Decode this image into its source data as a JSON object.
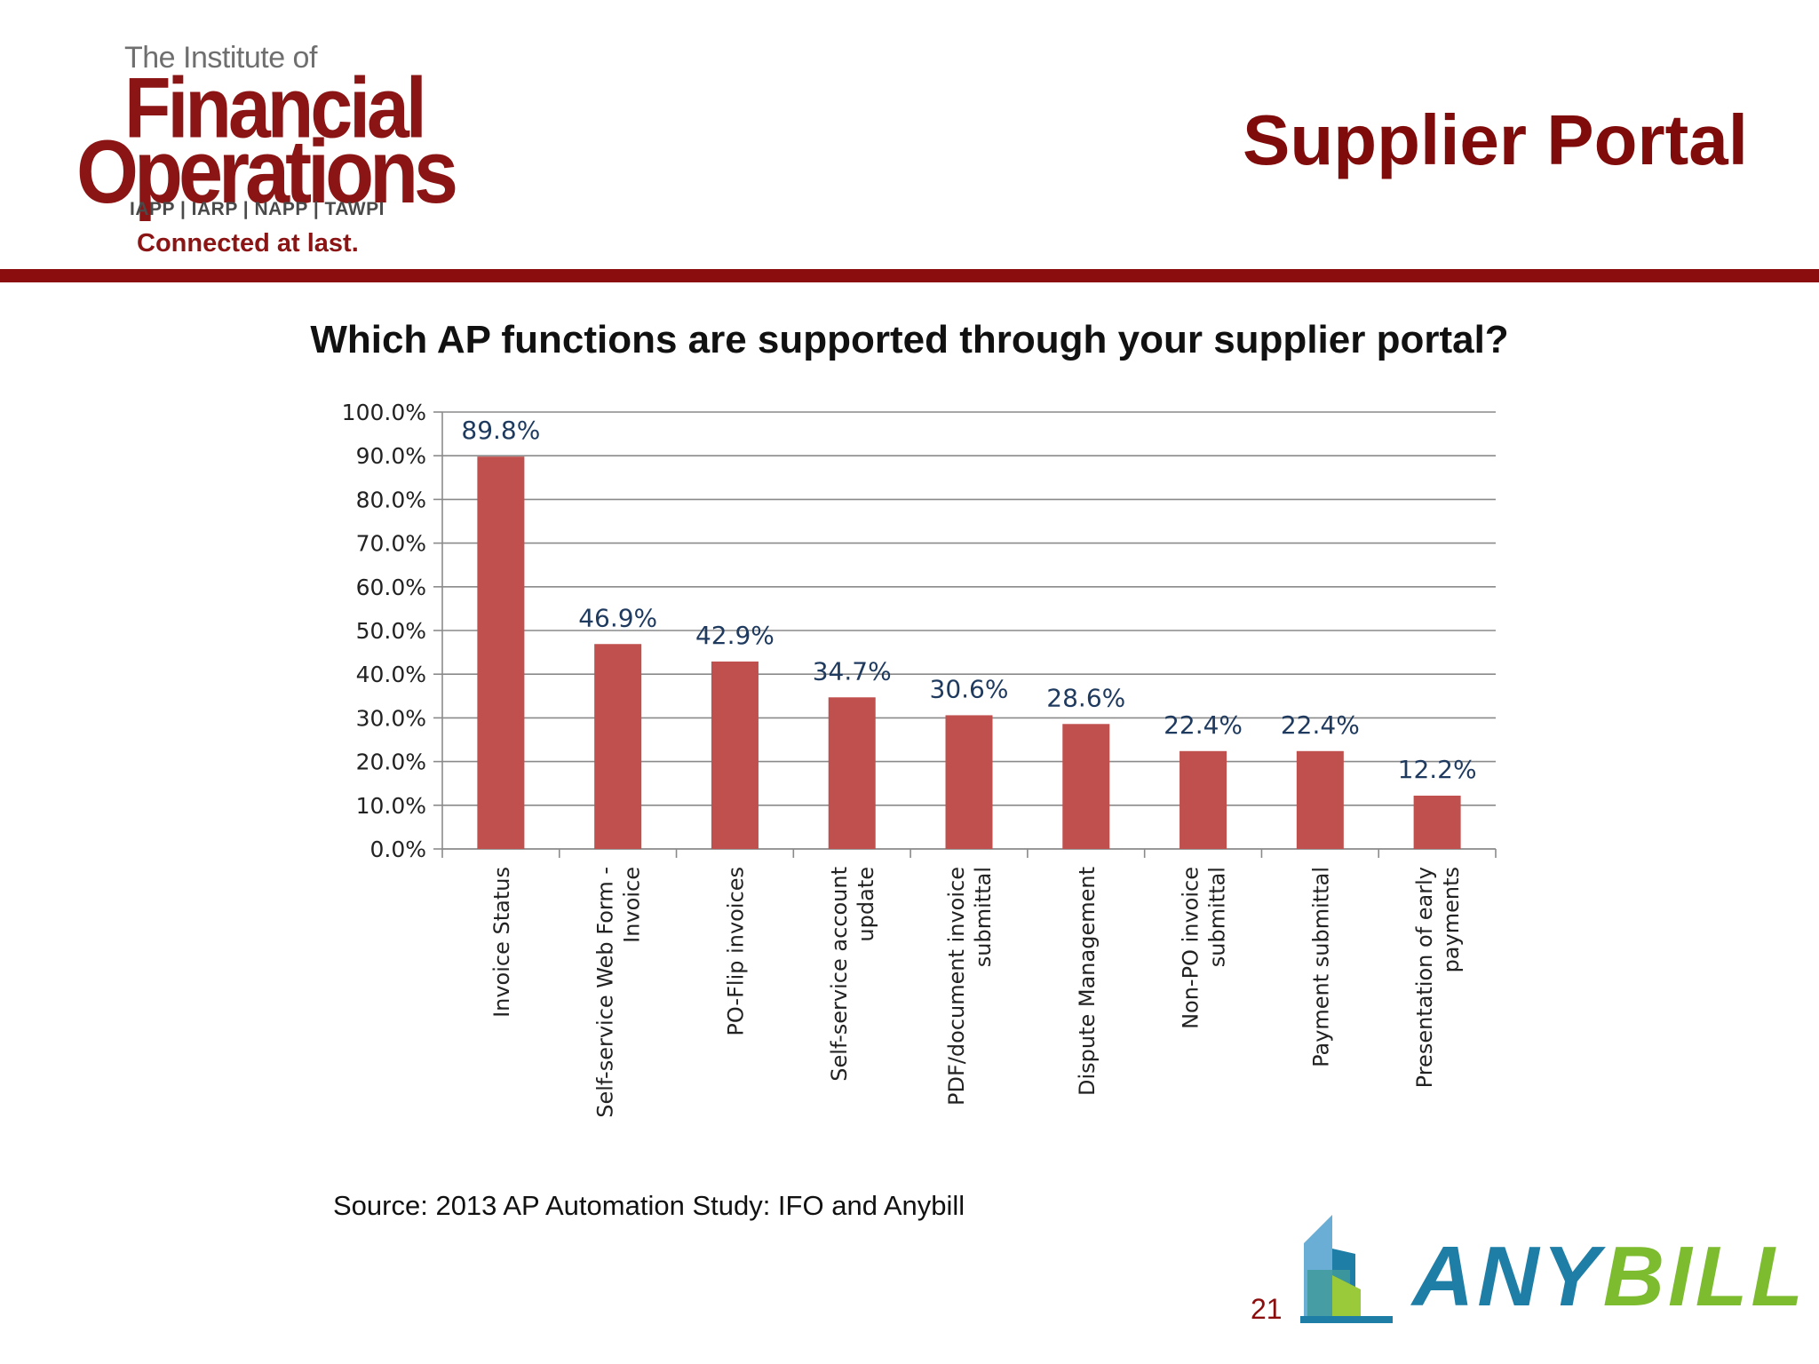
{
  "logo": {
    "top_line": "The Institute of",
    "line1": "Financial",
    "line2": "Operations",
    "sub": "IAPP | IARP | NAPP | TAWPI",
    "tagline": "Connected at last."
  },
  "slide": {
    "title": "Supplier Portal",
    "question": "Which AP functions are supported through your supplier portal?",
    "source": "Source: 2013 AP Automation Study: IFO and Anybill",
    "page_number": "21"
  },
  "brand": {
    "name_part1": "ANY",
    "name_part2": "BILL",
    "colors": {
      "primary": "#7f0b0b",
      "bar": "#c0504d",
      "any": "#1f7ea6",
      "bill": "#7dbb2f"
    }
  },
  "chart_data": {
    "type": "bar",
    "title": "",
    "xlabel": "",
    "ylabel": "",
    "ylim": [
      0,
      100
    ],
    "yticks": [
      "0.0%",
      "10.0%",
      "20.0%",
      "30.0%",
      "40.0%",
      "50.0%",
      "60.0%",
      "70.0%",
      "80.0%",
      "90.0%",
      "100.0%"
    ],
    "grid": true,
    "categories": [
      [
        "Invoice Status"
      ],
      [
        "Self-service Web Form -",
        "Invoice"
      ],
      [
        "PO-Flip invoices"
      ],
      [
        "Self-service account",
        "update"
      ],
      [
        "PDF/document invoice",
        "submittal"
      ],
      [
        "Dispute Management"
      ],
      [
        "Non-PO invoice",
        "submittal"
      ],
      [
        "Payment submittal"
      ],
      [
        "Presentation of early",
        "payments"
      ]
    ],
    "values": [
      89.8,
      46.9,
      42.9,
      34.7,
      30.6,
      28.6,
      22.4,
      22.4,
      12.2
    ],
    "data_labels": [
      "89.8%",
      "46.9%",
      "42.9%",
      "34.7%",
      "30.6%",
      "28.6%",
      "22.4%",
      "22.4%",
      "12.2%"
    ]
  }
}
